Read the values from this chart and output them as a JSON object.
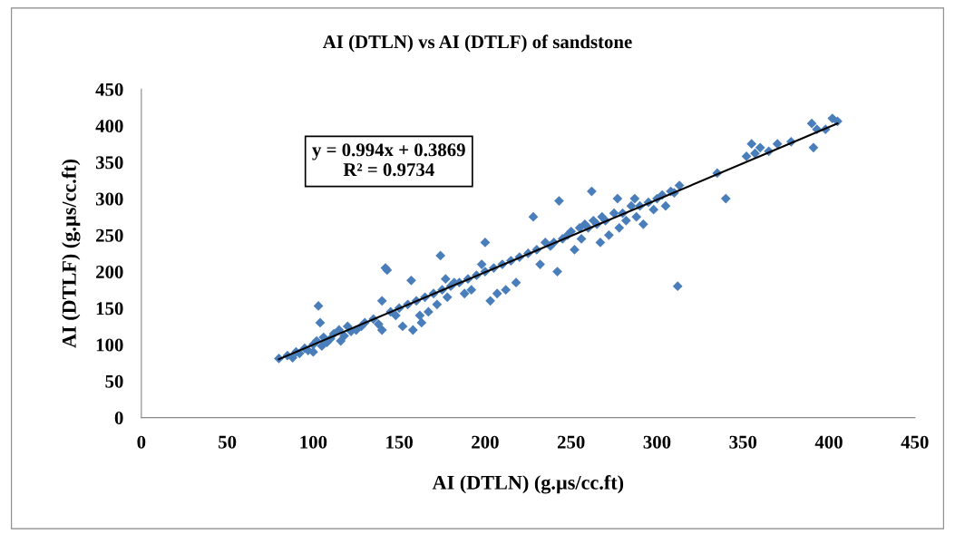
{
  "chart_data": {
    "type": "scatter",
    "title": "AI (DTLN) vs AI (DTLF) of sandstone",
    "xlabel": "AI (DTLN) (g.µs/cc.ft)",
    "ylabel": "AI (DTLF) (g.µs/cc.ft)",
    "annotations": [
      "y = 0.994x + 0.3869\nR² = 0.9734"
    ],
    "xlim": [
      0,
      450
    ],
    "xticks": [
      0,
      50,
      100,
      150,
      200,
      250,
      300,
      350,
      400,
      450
    ],
    "ylim": [
      0,
      450
    ],
    "yticks": [
      0,
      50,
      100,
      150,
      200,
      250,
      300,
      350,
      400,
      450
    ],
    "grid": false,
    "legend": false,
    "marker": "diamond",
    "series": [
      {
        "color": "#4a7ebb",
        "x": [
          80,
          85,
          88,
          90,
          92,
          95,
          97,
          100,
          100,
          102,
          103,
          104,
          105,
          106,
          108,
          110,
          112,
          115,
          116,
          118,
          120,
          122,
          125,
          128,
          130,
          135,
          138,
          140,
          140,
          142,
          143,
          145,
          148,
          150,
          152,
          155,
          157,
          158,
          160,
          162,
          163,
          165,
          167,
          170,
          172,
          174,
          175,
          177,
          178,
          180,
          182,
          185,
          188,
          190,
          192,
          195,
          198,
          200,
          200,
          203,
          205,
          207,
          210,
          212,
          215,
          218,
          220,
          225,
          228,
          230,
          232,
          235,
          238,
          240,
          242,
          243,
          245,
          248,
          250,
          252,
          255,
          256,
          258,
          260,
          262,
          263,
          265,
          267,
          268,
          270,
          272,
          275,
          277,
          278,
          280,
          282,
          285,
          287,
          288,
          290,
          292,
          295,
          298,
          300,
          303,
          305,
          308,
          310,
          312,
          313,
          335,
          340,
          352,
          355,
          357,
          360,
          365,
          370,
          378,
          390,
          391,
          393,
          398,
          402,
          405
        ],
        "values": [
          81,
          85,
          82,
          90,
          88,
          95,
          92,
          100,
          90,
          105,
          153,
          130,
          98,
          110,
          103,
          108,
          115,
          120,
          105,
          112,
          125,
          118,
          120,
          125,
          130,
          135,
          128,
          160,
          120,
          205,
          202,
          145,
          140,
          150,
          125,
          155,
          188,
          120,
          160,
          140,
          130,
          165,
          145,
          170,
          155,
          222,
          175,
          190,
          165,
          180,
          185,
          185,
          170,
          190,
          175,
          195,
          210,
          240,
          200,
          160,
          205,
          170,
          210,
          175,
          215,
          185,
          220,
          225,
          275,
          230,
          210,
          240,
          235,
          240,
          200,
          297,
          245,
          250,
          255,
          230,
          260,
          245,
          265,
          260,
          310,
          270,
          265,
          240,
          275,
          270,
          250,
          280,
          300,
          260,
          280,
          270,
          290,
          300,
          275,
          290,
          265,
          295,
          285,
          300,
          305,
          290,
          310,
          308,
          180,
          318,
          335,
          300,
          358,
          375,
          362,
          370,
          365,
          375,
          378,
          403,
          370,
          395,
          395,
          410,
          406
        ]
      },
      {
        "type": "line",
        "color": "#000000",
        "marker": "none",
        "line_style": "solid",
        "x": [
          80,
          405
        ],
        "values": [
          80,
          403
        ]
      }
    ]
  }
}
